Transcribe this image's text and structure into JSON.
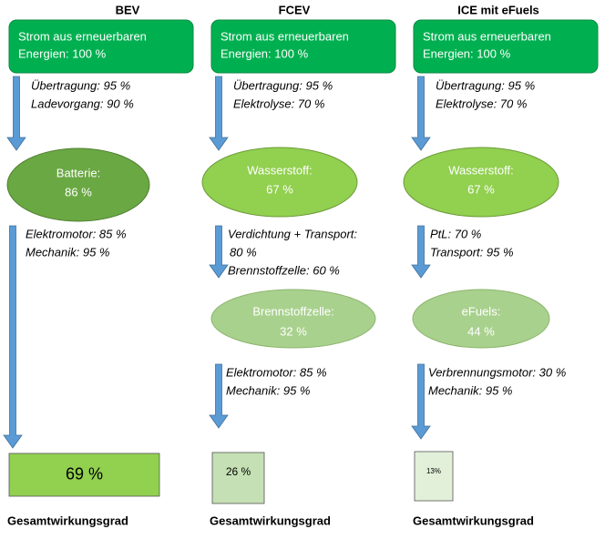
{
  "columns": [
    {
      "title": "BEV",
      "source": [
        "Strom aus erneuerbaren",
        "Energien: 100 %"
      ],
      "steps1": [
        "Übertragung: 95 %",
        "Ladevorgang: 90 %"
      ],
      "stage1": [
        "Batterie:",
        "86 %"
      ],
      "steps2": [
        "Elektromotor: 85 %",
        "Mechanik: 95 %"
      ],
      "result": "69 %",
      "result_label": "Gesamtwirkungsgrad"
    },
    {
      "title": "FCEV",
      "source": [
        "Strom aus erneuerbaren",
        "Energien: 100 %"
      ],
      "steps1": [
        "Übertragung: 95 %",
        "Elektrolyse: 70 %"
      ],
      "stage1": [
        "Wasserstoff:",
        "67 %"
      ],
      "steps2": [
        "Verdichtung + Transport:",
        "80 %",
        "Brennstoffzelle: 60 %"
      ],
      "stage2": [
        "Brennstoffzelle:",
        "32 %"
      ],
      "steps3": [
        "Elektromotor: 85 %",
        "Mechanik: 95 %"
      ],
      "result": "26 %",
      "result_label": "Gesamtwirkungsgrad"
    },
    {
      "title": "ICE mit eFuels",
      "source": [
        "Strom aus erneuerbaren",
        "Energien: 100 %"
      ],
      "steps1": [
        "Übertragung: 95 %",
        "Elektrolyse: 70 %"
      ],
      "stage1": [
        "Wasserstoff:",
        "67 %"
      ],
      "steps2": [
        "PtL: 70 %",
        "Transport: 95 %"
      ],
      "stage2": [
        "eFuels:",
        "44 %"
      ],
      "steps3": [
        "Verbrennungsmotor: 30 %",
        "Mechanik: 95 %"
      ],
      "result": "13%",
      "result_label": "Gesamtwirkungsgrad"
    }
  ]
}
